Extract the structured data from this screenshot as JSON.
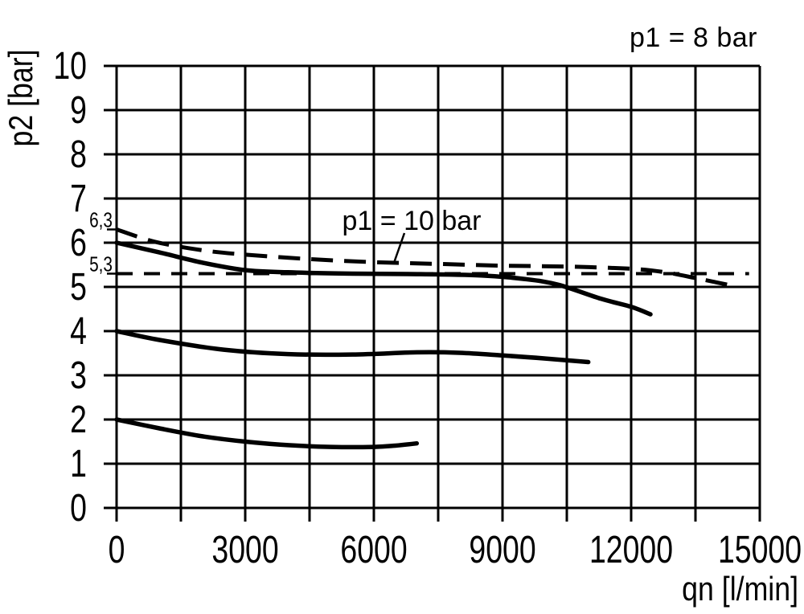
{
  "figure": {
    "background": "#ffffff",
    "ink_color": "#000000"
  },
  "chart_data": {
    "type": "line",
    "title_annotation": "p1 = 8 bar",
    "curve_annotation": "p1 = 10 bar",
    "xlabel": "qn [l/min]",
    "ylabel": "p2 [bar]",
    "xlim": [
      0,
      15000
    ],
    "ylim": [
      0,
      10
    ],
    "x_minor_step": 1500,
    "x_major_ticks": [
      0,
      3000,
      6000,
      9000,
      12000,
      15000
    ],
    "x_major_tick_labels": [
      "0",
      "3000",
      "6000",
      "9000",
      "12000",
      "15000"
    ],
    "y_ticks": [
      0,
      1,
      2,
      3,
      4,
      5,
      6,
      7,
      8,
      9,
      10
    ],
    "y_tick_labels": [
      "0",
      "1",
      "2",
      "3",
      "4",
      "5",
      "6",
      "7",
      "8",
      "9",
      "10"
    ],
    "y_special_labels": [
      {
        "value": 6.3,
        "label": "6,3"
      },
      {
        "value": 5.3,
        "label": "5,3"
      }
    ],
    "grid": true,
    "series": [
      {
        "id": "p1-10bar-curve",
        "label": "p1 = 10 bar",
        "line": "dashed",
        "points": [
          [
            0,
            6.3
          ],
          [
            900,
            6.02
          ],
          [
            2000,
            5.83
          ],
          [
            3000,
            5.73
          ],
          [
            4500,
            5.63
          ],
          [
            6000,
            5.56
          ],
          [
            7500,
            5.52
          ],
          [
            9000,
            5.48
          ],
          [
            10500,
            5.46
          ],
          [
            12000,
            5.41
          ],
          [
            12800,
            5.33
          ],
          [
            13600,
            5.18
          ],
          [
            14400,
            5.02
          ]
        ]
      },
      {
        "id": "p1-8bar-curve",
        "label": "p1 = 8 bar",
        "line": "solid",
        "points": [
          [
            0,
            6.0
          ],
          [
            1000,
            5.78
          ],
          [
            2000,
            5.55
          ],
          [
            3000,
            5.38
          ],
          [
            4000,
            5.33
          ],
          [
            5500,
            5.3
          ],
          [
            7000,
            5.29
          ],
          [
            8500,
            5.26
          ],
          [
            9500,
            5.18
          ],
          [
            10300,
            5.05
          ],
          [
            11300,
            4.73
          ],
          [
            12000,
            4.55
          ],
          [
            12450,
            4.38
          ]
        ]
      },
      {
        "id": "mid-outlet-curve",
        "label": null,
        "line": "solid",
        "points": [
          [
            0,
            4.0
          ],
          [
            1000,
            3.8
          ],
          [
            2500,
            3.58
          ],
          [
            4000,
            3.48
          ],
          [
            5500,
            3.47
          ],
          [
            7000,
            3.52
          ],
          [
            8000,
            3.51
          ],
          [
            9000,
            3.45
          ],
          [
            10000,
            3.38
          ],
          [
            11000,
            3.3
          ]
        ]
      },
      {
        "id": "low-outlet-curve",
        "label": null,
        "line": "solid",
        "points": [
          [
            0,
            2.0
          ],
          [
            1000,
            1.8
          ],
          [
            2000,
            1.62
          ],
          [
            3000,
            1.5
          ],
          [
            4000,
            1.42
          ],
          [
            5000,
            1.38
          ],
          [
            6000,
            1.38
          ],
          [
            6500,
            1.41
          ],
          [
            7000,
            1.46
          ]
        ]
      },
      {
        "id": "reference-5-3-line",
        "label": "5,3",
        "line": "ref-dashed",
        "points": [
          [
            0,
            5.3
          ],
          [
            14750,
            5.3
          ]
        ]
      }
    ]
  }
}
